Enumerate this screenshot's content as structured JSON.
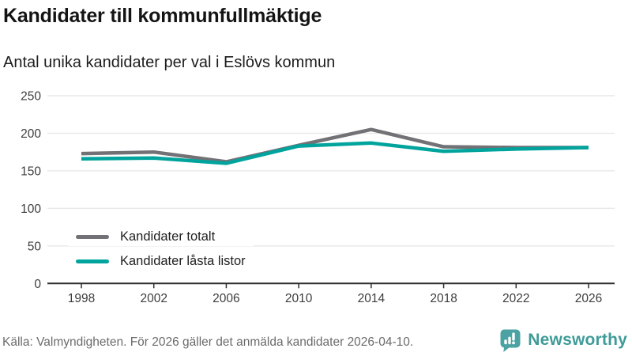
{
  "header": {
    "title": "Kandidater till kommunfullmäktige",
    "subtitle": "Antal unika kandidater per val i Eslövs kommun"
  },
  "chart_data": {
    "type": "line",
    "categories": [
      "1998",
      "2002",
      "2006",
      "2010",
      "2014",
      "2018",
      "2022",
      "2026"
    ],
    "series": [
      {
        "name": "Kandidater totalt",
        "color": "#717176",
        "values": [
          173,
          175,
          162,
          184,
          205,
          182,
          181,
          181
        ]
      },
      {
        "name": "Kandidater låsta listor",
        "color": "#00a49d",
        "values": [
          166,
          167,
          160,
          183,
          187,
          176,
          179,
          181
        ]
      }
    ],
    "ylim": [
      0,
      250
    ],
    "yticks": [
      0,
      50,
      100,
      150,
      200,
      250
    ],
    "grid": "horizontal",
    "legend_position": "inside-bottom-left",
    "colors": {
      "gridline": "#e9e9e9",
      "axis": "#2f2f2f",
      "tick_label": "#3d3d3d"
    }
  },
  "footer": {
    "source": "Källa: Valmyndigheten. För 2026 gäller det anmälda kandidater 2026-04-10.",
    "brand": "Newsworthy",
    "brand_color": "#3e9b98",
    "logo_color": "#4aa3a2"
  }
}
